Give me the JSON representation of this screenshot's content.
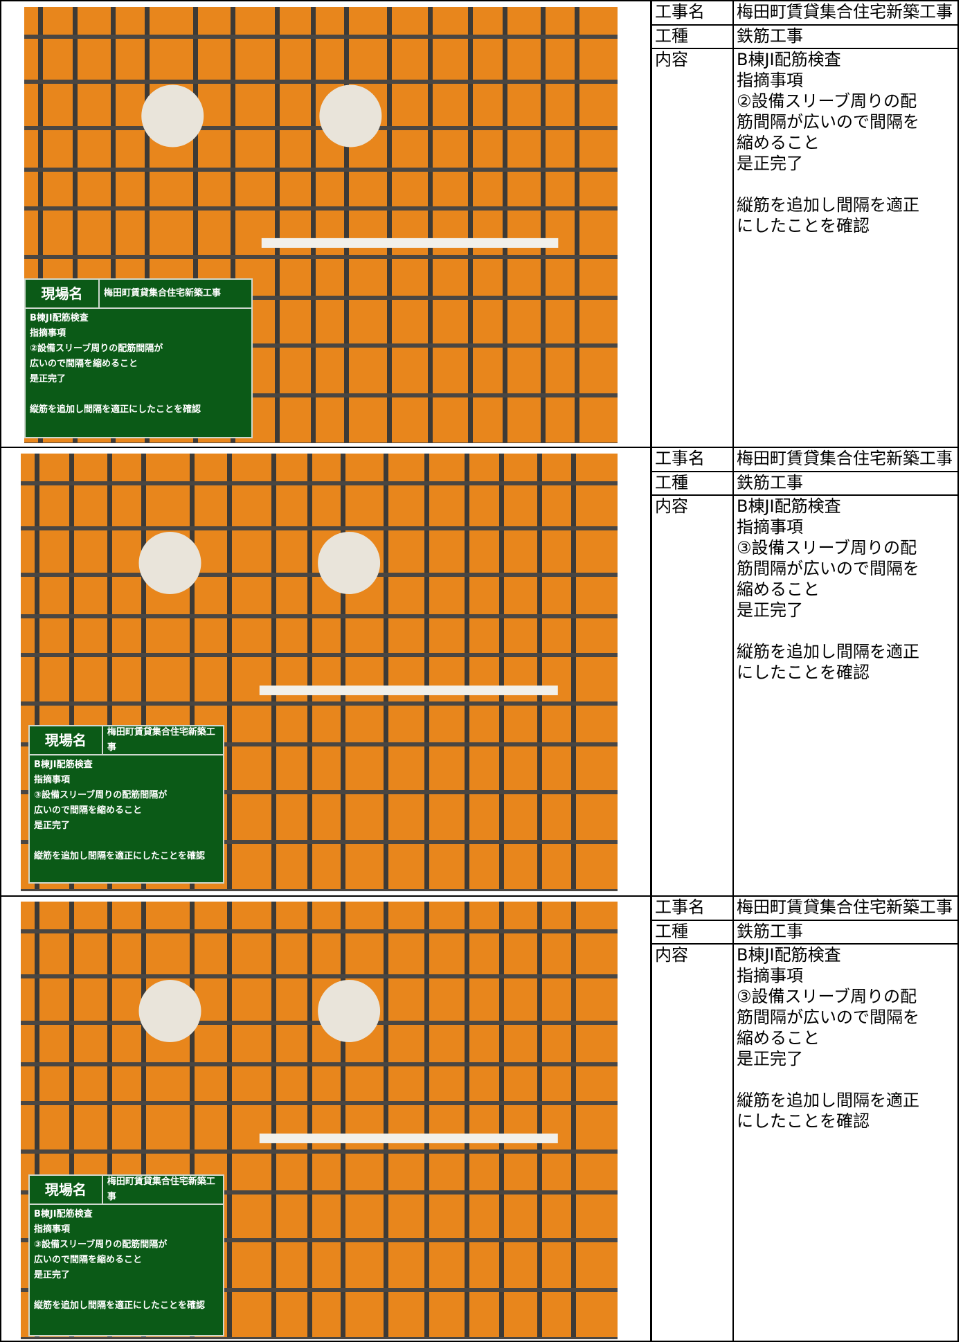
{
  "rows": [
    {
      "board": {
        "site_label": "現場名",
        "site_name": "梅田町賃貸集合住宅新築工事",
        "lines": [
          "B棟JI配筋検査",
          "指摘事項",
          "②設備スリーブ周りの配筋間隔が",
          "広いので間隔を縮めること",
          "是正完了"
        ],
        "note": "縦筋を追加し間隔を適正にしたことを確認"
      },
      "table": {
        "project_label": "工事名",
        "project": "梅田町賃貸集合住宅新築工事",
        "type_label": "工種",
        "type": "鉄筋工事",
        "content_label": "内容",
        "content": [
          "B棟JI配筋検査",
          "指摘事項",
          "②設備スリーブ周りの配",
          "筋間隔が広いので間隔を",
          "縮めること",
          "是正完了"
        ],
        "content_note": [
          "縦筋を追加し間隔を適正",
          "にしたことを確認"
        ]
      }
    },
    {
      "board": {
        "site_label": "現場名",
        "site_name": "梅田町賃貸集合住宅新築工事",
        "lines": [
          "B棟JI配筋検査",
          "指摘事項",
          "③設備スリーブ周りの配筋間隔が",
          "広いので間隔を縮めること",
          "是正完了"
        ],
        "note": "縦筋を追加し間隔を適正にしたことを確認"
      },
      "table": {
        "project_label": "工事名",
        "project": "梅田町賃貸集合住宅新築工事",
        "type_label": "工種",
        "type": "鉄筋工事",
        "content_label": "内容",
        "content": [
          "B棟JI配筋検査",
          "指摘事項",
          "③設備スリーブ周りの配",
          "筋間隔が広いので間隔を",
          "縮めること",
          "是正完了"
        ],
        "content_note": [
          "縦筋を追加し間隔を適正",
          "にしたことを確認"
        ]
      }
    },
    {
      "board": {
        "site_label": "現場名",
        "site_name": "梅田町賃貸集合住宅新築工事",
        "lines": [
          "B棟JI配筋検査",
          "指摘事項",
          "③設備スリーブ周りの配筋間隔が",
          "広いので間隔を縮めること",
          "是正完了"
        ],
        "note": "縦筋を追加し間隔を適正にしたことを確認"
      },
      "table": {
        "project_label": "工事名",
        "project": "梅田町賃貸集合住宅新築工事",
        "type_label": "工種",
        "type": "鉄筋工事",
        "content_label": "内容",
        "content": [
          "B棟JI配筋検査",
          "指摘事項",
          "③設備スリーブ周りの配",
          "筋間隔が広いので間隔を",
          "縮めること",
          "是正完了"
        ],
        "content_note": [
          "縦筋を追加し間隔を適正",
          "にしたことを確認"
        ]
      }
    }
  ]
}
